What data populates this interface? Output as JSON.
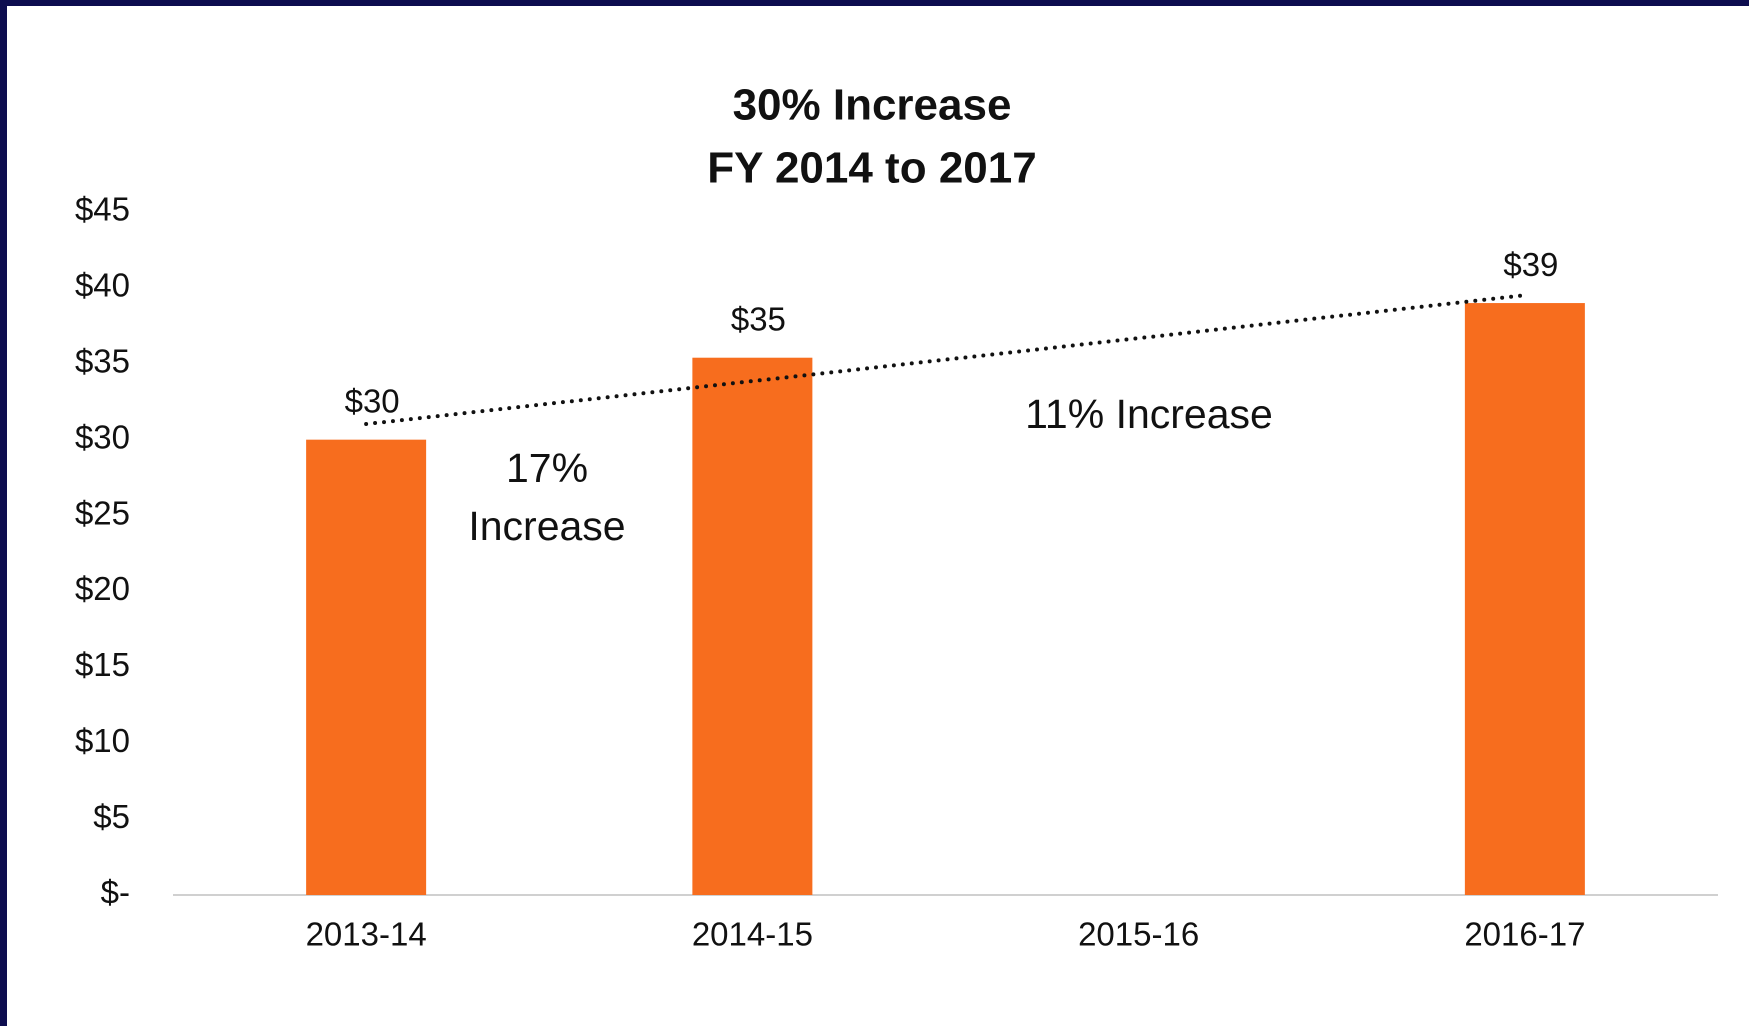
{
  "chart_data": {
    "type": "bar",
    "title": "30% Increase",
    "subtitle": "FY 2014 to 2017",
    "categories": [
      "2013-14",
      "2014-15",
      "2015-16",
      "2016-17"
    ],
    "values": [
      30,
      35.4,
      null,
      39
    ],
    "value_labels": [
      "$30",
      "$35",
      null,
      "$39"
    ],
    "color": "#f76d1e",
    "ylim": [
      0,
      45
    ],
    "yticks": [
      {
        "value": 0,
        "label": "$-"
      },
      {
        "value": 5,
        "label": "$5"
      },
      {
        "value": 10,
        "label": "$10"
      },
      {
        "value": 15,
        "label": "$15"
      },
      {
        "value": 20,
        "label": "$20"
      },
      {
        "value": 25,
        "label": "$25"
      },
      {
        "value": 30,
        "label": "$30"
      },
      {
        "value": 35,
        "label": "$35"
      },
      {
        "value": 40,
        "label": "$40"
      },
      {
        "value": 45,
        "label": "$45"
      }
    ],
    "trendline": "linear",
    "annotations": [
      [
        "17%",
        "Increase"
      ],
      [
        "11% Increase"
      ]
    ]
  }
}
